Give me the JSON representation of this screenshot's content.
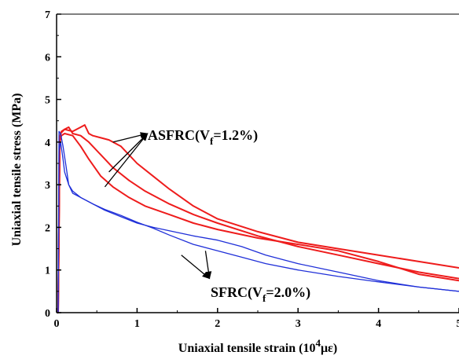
{
  "chart_data": {
    "type": "line",
    "xlabel": "Uniaxial tensile strain (10",
    "xlabel_sup": "4",
    "xlabel_tail": "με)",
    "ylabel": "Uniaxial tensile stress (MPa)",
    "xlim": [
      0,
      5
    ],
    "ylim": [
      0,
      7
    ],
    "xticks": [
      "0",
      "1",
      "2",
      "3",
      "4",
      "5"
    ],
    "yticks": [
      "0",
      "1",
      "2",
      "3",
      "4",
      "5",
      "6",
      "7"
    ],
    "grid": false,
    "annotations": [
      {
        "text_pre": "ASFRC(V",
        "sub": "f",
        "text_post": "=1.2%)",
        "color": "#000000"
      },
      {
        "text_pre": "SFRC(V",
        "sub": "f",
        "text_post": "=2.0%)",
        "color": "#000000"
      }
    ],
    "series": [
      {
        "group": "ASFRC",
        "color": "#ee1c1c",
        "x": [
          0,
          0.02,
          0.04,
          0.05,
          0.1,
          0.2,
          0.3,
          0.35,
          0.4,
          0.45,
          0.55,
          0.65,
          0.8,
          1.0,
          1.2,
          1.4,
          1.7,
          2.0,
          2.5,
          3.0,
          3.5,
          4.0,
          4.5,
          5.0
        ],
        "y": [
          0,
          0,
          4.1,
          4.2,
          4.3,
          4.25,
          4.35,
          4.4,
          4.2,
          4.15,
          4.1,
          4.05,
          3.9,
          3.5,
          3.2,
          2.9,
          2.5,
          2.2,
          1.9,
          1.65,
          1.5,
          1.35,
          1.2,
          1.05
        ]
      },
      {
        "group": "ASFRC",
        "color": "#ee1c1c",
        "x": [
          0,
          0.02,
          0.04,
          0.06,
          0.1,
          0.15,
          0.2,
          0.3,
          0.4,
          0.55,
          0.7,
          0.9,
          1.1,
          1.4,
          1.7,
          2.0,
          2.5,
          3.0,
          3.5,
          4.0,
          4.5,
          5.0
        ],
        "y": [
          0,
          0,
          4.1,
          4.25,
          4.3,
          4.35,
          4.2,
          4.15,
          4.0,
          3.7,
          3.4,
          3.1,
          2.85,
          2.55,
          2.3,
          2.1,
          1.8,
          1.55,
          1.35,
          1.15,
          0.95,
          0.8
        ]
      },
      {
        "group": "ASFRC",
        "color": "#ee1c1c",
        "x": [
          0,
          0.02,
          0.04,
          0.06,
          0.1,
          0.2,
          0.3,
          0.4,
          0.55,
          0.7,
          0.9,
          1.1,
          1.4,
          1.7,
          2.0,
          2.5,
          3.0,
          3.5,
          4.0,
          4.5,
          5.0
        ],
        "y": [
          0,
          0,
          4.0,
          4.15,
          4.2,
          4.15,
          3.9,
          3.6,
          3.2,
          2.95,
          2.7,
          2.5,
          2.3,
          2.1,
          1.95,
          1.75,
          1.6,
          1.45,
          1.2,
          0.9,
          0.75
        ]
      },
      {
        "group": "SFRC",
        "color": "#1f2fd8",
        "x": [
          0,
          0.02,
          0.03,
          0.05,
          0.08,
          0.12,
          0.15,
          0.2,
          0.3,
          0.45,
          0.6,
          0.8,
          1.0,
          1.2,
          1.4,
          1.7,
          2.0,
          2.3,
          2.6,
          3.0,
          3.5,
          4.0,
          4.5,
          5.0
        ],
        "y": [
          0,
          0,
          4.25,
          4.2,
          3.9,
          3.4,
          3.0,
          2.8,
          2.7,
          2.55,
          2.4,
          2.25,
          2.1,
          2.0,
          1.92,
          1.8,
          1.7,
          1.55,
          1.35,
          1.15,
          0.95,
          0.75,
          0.6,
          0.5
        ]
      },
      {
        "group": "SFRC",
        "color": "#1f2fd8",
        "x": [
          0,
          0.02,
          0.03,
          0.05,
          0.08,
          0.1,
          0.15,
          0.2,
          0.3,
          0.45,
          0.6,
          0.8,
          1.0,
          1.2,
          1.4,
          1.7,
          2.0,
          2.3,
          2.6,
          3.0,
          3.5,
          4.0,
          4.5,
          5.0
        ],
        "y": [
          0,
          0,
          3.8,
          4.0,
          3.6,
          3.3,
          3.0,
          2.85,
          2.7,
          2.55,
          2.42,
          2.28,
          2.12,
          1.98,
          1.82,
          1.6,
          1.45,
          1.3,
          1.15,
          1.0,
          0.85,
          0.72,
          0.6,
          0.5
        ]
      }
    ]
  }
}
